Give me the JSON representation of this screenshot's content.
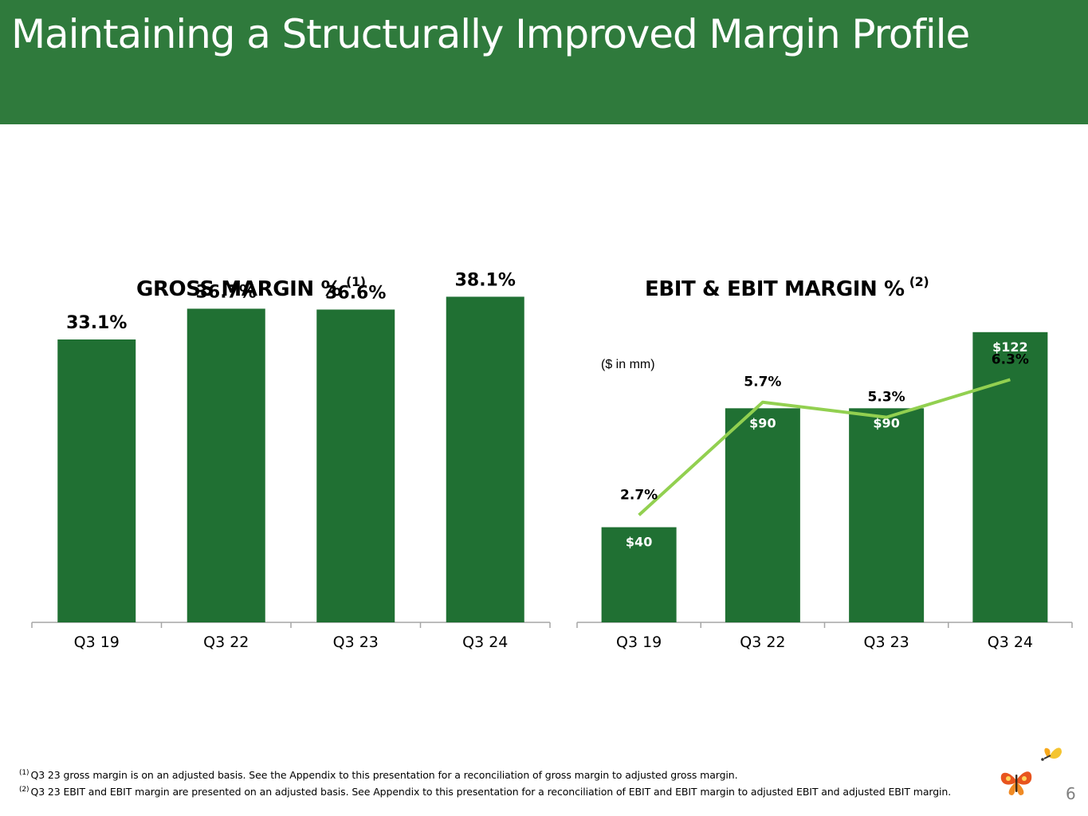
{
  "page": {
    "title": "Maintaining a Structurally Improved Margin Profile",
    "page_number": "6"
  },
  "left_chart": {
    "title": "GROSS MARGIN %",
    "title_ref": "(1)"
  },
  "right_chart": {
    "title": "EBIT & EBIT MARGIN %",
    "title_ref": "(2)",
    "unit_note": "($ in mm)"
  },
  "footnotes": [
    {
      "ref": "(1)",
      "text": "Q3 23 gross margin is on an adjusted basis.  See the Appendix to this presentation for a reconciliation of gross margin to adjusted gross margin."
    },
    {
      "ref": "(2)",
      "text": "Q3 23 EBIT and EBIT margin are presented on an adjusted basis. See Appendix to this presentation for a reconciliation of EBIT and EBIT margin to adjusted EBIT and adjusted EBIT margin."
    }
  ],
  "logo": {
    "name": "butterfly-logo"
  },
  "colors": {
    "header": "#2f7a3c",
    "bar": "#207033",
    "line": "#92d050",
    "axis": "#a6a6a6",
    "page_number": "#7f7f7f"
  },
  "chart_data": [
    {
      "type": "bar",
      "title": "GROSS MARGIN %",
      "categories": [
        "Q3 19",
        "Q3 22",
        "Q3 23",
        "Q3 24"
      ],
      "values": [
        33.1,
        36.7,
        36.6,
        38.1
      ],
      "value_labels": [
        "33.1%",
        "36.7%",
        "36.6%",
        "38.1%"
      ],
      "ylim": [
        0,
        40
      ],
      "grid": false
    },
    {
      "type": "bar",
      "title": "EBIT & EBIT MARGIN %",
      "categories": [
        "Q3 19",
        "Q3 22",
        "Q3 23",
        "Q3 24"
      ],
      "series": [
        {
          "kind": "bar",
          "values": [
            40,
            90,
            90,
            122
          ],
          "value_labels": [
            "$40",
            "$90",
            "$90",
            "$122"
          ]
        },
        {
          "kind": "line",
          "values": [
            2.7,
            5.7,
            5.3,
            6.3
          ],
          "value_labels": [
            "2.7%",
            "5.7%",
            "5.3%",
            "6.3%"
          ]
        }
      ],
      "bar_ylim": [
        0,
        135
      ],
      "line_ylim": [
        -0.15,
        7.24
      ],
      "grid": false
    }
  ]
}
